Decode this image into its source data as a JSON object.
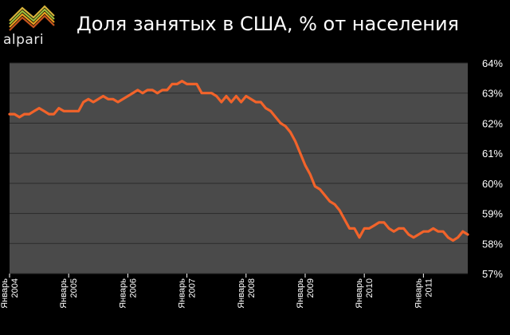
{
  "logo": {
    "text": "alpari"
  },
  "colors": {
    "background": "#000000",
    "plot_area": "#4a4a4a",
    "line": "#f2632a",
    "gridline": "#2a2a2a",
    "text": "#ffffff"
  },
  "chart_data": {
    "type": "line",
    "title": "Доля занятых в США, % от населения",
    "xlabel": "",
    "ylabel": "",
    "ylim": [
      57,
      64
    ],
    "y_ticks": [
      "57%",
      "58%",
      "59%",
      "60%",
      "61%",
      "62%",
      "63%",
      "64%"
    ],
    "x_tick_month": "Январь",
    "x_ticks": [
      "2004",
      "2005",
      "2006",
      "2007",
      "2008",
      "2009",
      "2010",
      "2011"
    ],
    "xlim": [
      "2004-01",
      "2011-10"
    ],
    "grid": {
      "horizontal": true,
      "vertical": false
    },
    "legend": "none",
    "series": [
      {
        "x": [
          "2004-01",
          "2004-02",
          "2004-03",
          "2004-04",
          "2004-05",
          "2004-06",
          "2004-07",
          "2004-08",
          "2004-09",
          "2004-10",
          "2004-11",
          "2004-12",
          "2005-01",
          "2005-02",
          "2005-03",
          "2005-04",
          "2005-05",
          "2005-06",
          "2005-07",
          "2005-08",
          "2005-09",
          "2005-10",
          "2005-11",
          "2005-12",
          "2006-01",
          "2006-02",
          "2006-03",
          "2006-04",
          "2006-05",
          "2006-06",
          "2006-07",
          "2006-08",
          "2006-09",
          "2006-10",
          "2006-11",
          "2006-12",
          "2007-01",
          "2007-02",
          "2007-03",
          "2007-04",
          "2007-05",
          "2007-06",
          "2007-07",
          "2007-08",
          "2007-09",
          "2007-10",
          "2007-11",
          "2007-12",
          "2008-01",
          "2008-02",
          "2008-03",
          "2008-04",
          "2008-05",
          "2008-06",
          "2008-07",
          "2008-08",
          "2008-09",
          "2008-10",
          "2008-11",
          "2008-12",
          "2009-01",
          "2009-02",
          "2009-03",
          "2009-04",
          "2009-05",
          "2009-06",
          "2009-07",
          "2009-08",
          "2009-09",
          "2009-10",
          "2009-11",
          "2009-12",
          "2010-01",
          "2010-02",
          "2010-03",
          "2010-04",
          "2010-05",
          "2010-06",
          "2010-07",
          "2010-08",
          "2010-09",
          "2010-10",
          "2010-11",
          "2010-12",
          "2011-01",
          "2011-02",
          "2011-03",
          "2011-04",
          "2011-05",
          "2011-06",
          "2011-07",
          "2011-08",
          "2011-09",
          "2011-10"
        ],
        "values": [
          62.3,
          62.3,
          62.2,
          62.3,
          62.3,
          62.4,
          62.5,
          62.4,
          62.3,
          62.3,
          62.5,
          62.4,
          62.4,
          62.4,
          62.4,
          62.7,
          62.8,
          62.7,
          62.8,
          62.9,
          62.8,
          62.8,
          62.7,
          62.8,
          62.9,
          63.0,
          63.1,
          63.0,
          63.1,
          63.1,
          63.0,
          63.1,
          63.1,
          63.3,
          63.3,
          63.4,
          63.3,
          63.3,
          63.3,
          63.0,
          63.0,
          63.0,
          62.9,
          62.7,
          62.9,
          62.7,
          62.9,
          62.7,
          62.9,
          62.8,
          62.7,
          62.7,
          62.5,
          62.4,
          62.2,
          62.0,
          61.9,
          61.7,
          61.4,
          61.0,
          60.6,
          60.3,
          59.9,
          59.8,
          59.6,
          59.4,
          59.3,
          59.1,
          58.8,
          58.5,
          58.5,
          58.2,
          58.5,
          58.5,
          58.6,
          58.7,
          58.7,
          58.5,
          58.4,
          58.5,
          58.5,
          58.3,
          58.2,
          58.3,
          58.4,
          58.4,
          58.5,
          58.4,
          58.4,
          58.2,
          58.1,
          58.2,
          58.4,
          58.3
        ]
      }
    ]
  }
}
